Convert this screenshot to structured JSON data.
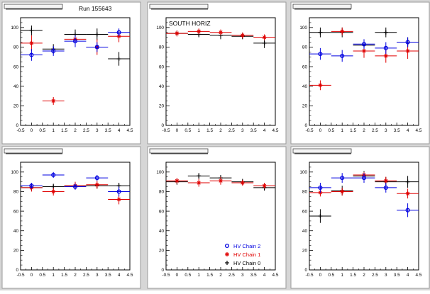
{
  "colors": {
    "canvas_bg": "#d6d6d6",
    "pad_bg": "#ffffff",
    "chain0": "#000000",
    "chain1": "#e00000",
    "chain2": "#0000e0"
  },
  "run_label": "Run 155643",
  "legend": {
    "items": [
      {
        "label": "HV Chain 2",
        "series": "chain2",
        "marker": "open-circle"
      },
      {
        "label": "HV Chain 1",
        "series": "chain1",
        "marker": "star"
      },
      {
        "label": "HV Chain 0",
        "series": "chain0",
        "marker": "plus"
      }
    ]
  },
  "chart_data": [
    {
      "type": "scatter",
      "title": "",
      "annotation": "",
      "xlim": [
        -0.5,
        4.5
      ],
      "ylim": [
        0,
        110
      ],
      "xticks": [
        "-0.5",
        "0",
        "0.5",
        "1",
        "1.5",
        "2",
        "2.5",
        "3",
        "3.5",
        "4",
        "4.5"
      ],
      "yticks": [
        "0",
        "20",
        "40",
        "60",
        "80",
        "100"
      ],
      "grid": false,
      "series": [
        {
          "key": "chain0",
          "x": [
            0,
            1,
            2,
            3,
            4
          ],
          "y": [
            97,
            78,
            93,
            93,
            68
          ],
          "yerr": [
            5,
            5,
            5,
            6,
            7
          ]
        },
        {
          "key": "chain1",
          "x": [
            0,
            1,
            2,
            3,
            4
          ],
          "y": [
            84,
            25,
            88,
            80,
            91
          ],
          "yerr": [
            8,
            4,
            4,
            8,
            6
          ]
        },
        {
          "key": "chain2",
          "x": [
            0,
            1,
            2,
            3,
            4
          ],
          "y": [
            72,
            76,
            86,
            80,
            95
          ],
          "yerr": [
            6,
            5,
            6,
            5,
            4
          ]
        }
      ]
    },
    {
      "type": "scatter",
      "title": "",
      "annotation": "SOUTH HORIZ",
      "xlim": [
        -0.5,
        4.5
      ],
      "ylim": [
        0,
        110
      ],
      "xticks": [
        "-0.5",
        "0",
        "0.5",
        "1",
        "1.5",
        "2",
        "2.5",
        "3",
        "3.5",
        "4",
        "4.5"
      ],
      "yticks": [
        "0",
        "20",
        "40",
        "60",
        "80",
        "100"
      ],
      "grid": false,
      "series": [
        {
          "key": "chain0",
          "x": [
            0,
            1,
            2,
            3,
            4
          ],
          "y": [
            94,
            93,
            92,
            91,
            84
          ],
          "yerr": [
            3,
            3,
            4,
            3,
            5
          ]
        },
        {
          "key": "chain1",
          "x": [
            0,
            1,
            2,
            3,
            4
          ],
          "y": [
            94,
            96,
            95,
            92,
            90
          ],
          "yerr": [
            3,
            3,
            3,
            3,
            3
          ]
        }
      ]
    },
    {
      "type": "scatter",
      "title": "",
      "annotation": "",
      "xlim": [
        -0.5,
        4.5
      ],
      "ylim": [
        0,
        110
      ],
      "xticks": [
        "-0.5",
        "0",
        "0.5",
        "1",
        "1.5",
        "2",
        "2.5",
        "3",
        "3.5",
        "4",
        "4.5"
      ],
      "yticks": [
        "0",
        "20",
        "40",
        "60",
        "80",
        "100"
      ],
      "grid": false,
      "series": [
        {
          "key": "chain0",
          "x": [
            0,
            1,
            2,
            3,
            4
          ],
          "y": [
            95,
            95,
            82,
            95,
            85
          ],
          "yerr": [
            5,
            5,
            5,
            5,
            5
          ]
        },
        {
          "key": "chain1",
          "x": [
            0,
            1,
            2,
            3,
            4
          ],
          "y": [
            41,
            96,
            76,
            71,
            76
          ],
          "yerr": [
            5,
            4,
            7,
            7,
            8
          ]
        },
        {
          "key": "chain2",
          "x": [
            0,
            1,
            2,
            3,
            4
          ],
          "y": [
            73,
            71,
            83,
            79,
            85
          ],
          "yerr": [
            6,
            6,
            5,
            6,
            5
          ]
        }
      ]
    },
    {
      "type": "scatter",
      "title": "",
      "annotation": "",
      "xlim": [
        -0.5,
        4.5
      ],
      "ylim": [
        0,
        110
      ],
      "xticks": [
        "-0.5",
        "0",
        "0.5",
        "1",
        "1.5",
        "2",
        "2.5",
        "3",
        "3.5",
        "4",
        "4.5"
      ],
      "yticks": [
        "0",
        "20",
        "40",
        "60",
        "80",
        "100"
      ],
      "grid": false,
      "series": [
        {
          "key": "chain0",
          "x": [
            0,
            1,
            2,
            3,
            4
          ],
          "y": [
            84,
            85,
            86,
            86,
            86
          ],
          "yerr": [
            3,
            3,
            3,
            3,
            3
          ]
        },
        {
          "key": "chain1",
          "x": [
            0,
            1,
            2,
            3,
            4
          ],
          "y": [
            84,
            80,
            86,
            87,
            72
          ],
          "yerr": [
            4,
            4,
            4,
            4,
            5
          ]
        },
        {
          "key": "chain2",
          "x": [
            0,
            1,
            2,
            3,
            4
          ],
          "y": [
            86,
            97,
            85,
            94,
            80
          ],
          "yerr": [
            3,
            3,
            3,
            3,
            5
          ]
        }
      ]
    },
    {
      "type": "scatter",
      "title": "",
      "annotation": "",
      "xlim": [
        -0.5,
        4.5
      ],
      "ylim": [
        0,
        110
      ],
      "xticks": [
        "-0.5",
        "0",
        "0.5",
        "1",
        "1.5",
        "2",
        "2.5",
        "3",
        "3.5",
        "4",
        "4.5"
      ],
      "yticks": [
        "0",
        "20",
        "40",
        "60",
        "80",
        "100"
      ],
      "grid": false,
      "series": [
        {
          "key": "chain0",
          "x": [
            0,
            1,
            2,
            3,
            4
          ],
          "y": [
            90,
            96,
            94,
            90,
            84
          ],
          "yerr": [
            3,
            3,
            3,
            3,
            3
          ]
        },
        {
          "key": "chain1",
          "x": [
            0,
            1,
            2,
            3,
            4
          ],
          "y": [
            91,
            89,
            91,
            89,
            86
          ],
          "yerr": [
            3,
            4,
            4,
            3,
            3
          ]
        }
      ]
    },
    {
      "type": "scatter",
      "title": "",
      "annotation": "",
      "xlim": [
        -0.5,
        4.5
      ],
      "ylim": [
        0,
        110
      ],
      "xticks": [
        "-0.5",
        "0",
        "0.5",
        "1",
        "1.5",
        "2",
        "2.5",
        "3",
        "3.5",
        "4",
        "4.5"
      ],
      "yticks": [
        "0",
        "20",
        "40",
        "60",
        "80",
        "100"
      ],
      "grid": false,
      "series": [
        {
          "key": "chain0",
          "x": [
            0,
            1,
            2,
            3,
            4
          ],
          "y": [
            55,
            81,
            96,
            90,
            90
          ],
          "yerr": [
            7,
            5,
            5,
            5,
            6
          ]
        },
        {
          "key": "chain1",
          "x": [
            0,
            1,
            2,
            3,
            4
          ],
          "y": [
            79,
            80,
            97,
            91,
            78
          ],
          "yerr": [
            4,
            4,
            3,
            4,
            5
          ]
        },
        {
          "key": "chain2",
          "x": [
            0,
            1,
            2,
            3,
            4
          ],
          "y": [
            84,
            94,
            94,
            84,
            61
          ],
          "yerr": [
            5,
            5,
            5,
            5,
            7
          ]
        }
      ]
    }
  ]
}
